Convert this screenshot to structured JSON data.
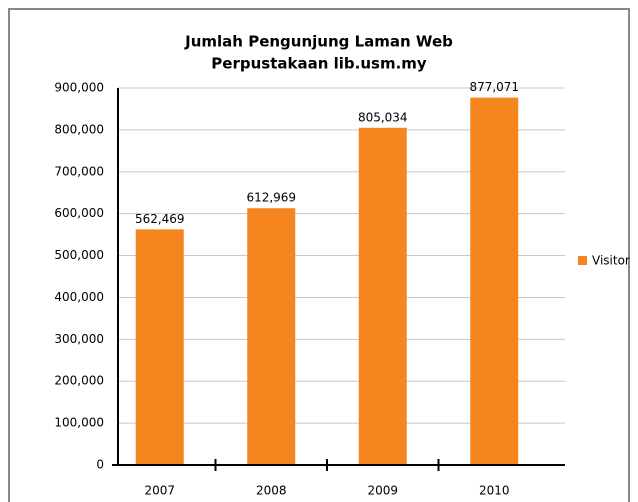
{
  "chart_data": {
    "type": "bar",
    "title": [
      "Jumlah Pengunjung Laman Web",
      "Perpustakaan lib.usm.my"
    ],
    "categories": [
      "2007",
      "2008",
      "2009",
      "2010"
    ],
    "series": [
      {
        "name": "Visitor",
        "color": "#f5861f",
        "values": [
          562469,
          612969,
          805034,
          877071
        ],
        "value_labels": [
          "562,469",
          "612,969",
          "805,034",
          "877,071"
        ]
      }
    ],
    "ylim": [
      0,
      900000
    ],
    "yticks": [
      0,
      {
        "value": 100000,
        "label": "100,000"
      },
      {
        "value": 200000,
        "label": "200,000"
      },
      {
        "value": 300000,
        "label": "300,000"
      },
      {
        "value": 400000,
        "label": "400,000"
      },
      {
        "value": 500000,
        "label": "500,000"
      },
      {
        "value": 600000,
        "label": "600,000"
      },
      {
        "value": 700000,
        "label": "700,000"
      },
      {
        "value": 800000,
        "label": "800,000"
      },
      {
        "value": 900000,
        "label": "900,000"
      }
    ],
    "grid": true,
    "legend": "right"
  }
}
